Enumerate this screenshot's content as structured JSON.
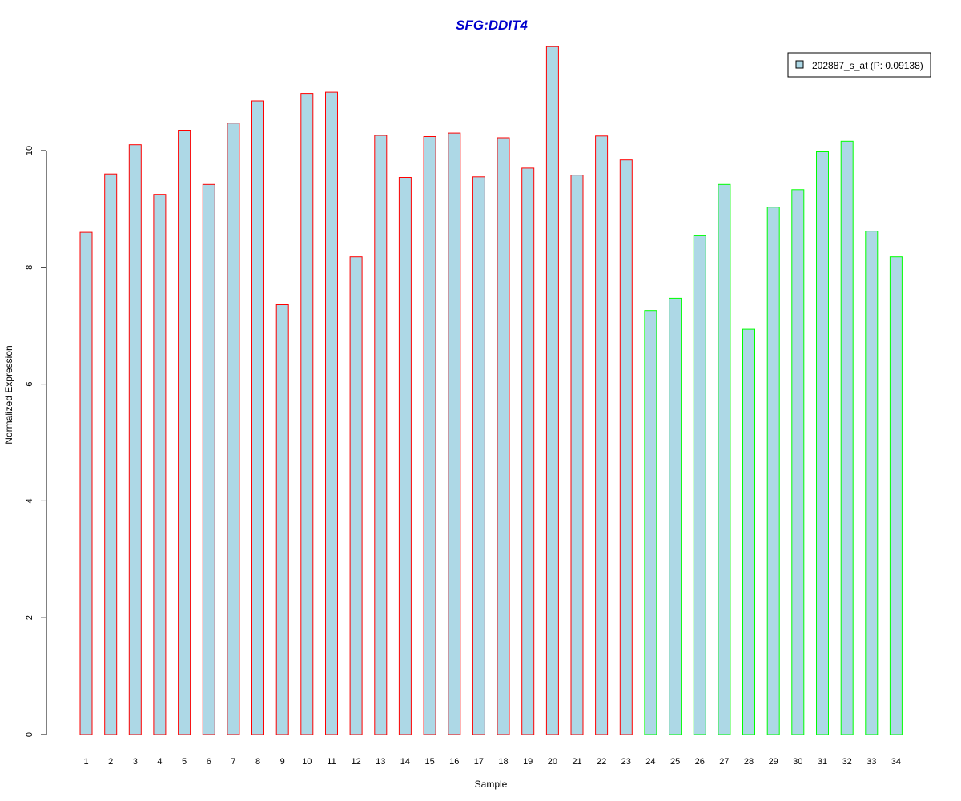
{
  "chart_data": {
    "type": "bar",
    "title": "SFG:DDIT4",
    "xlabel": "Sample",
    "ylabel": "Normalized Expression",
    "ylim": [
      0,
      11.8
    ],
    "yticks": [
      0,
      2,
      4,
      6,
      8,
      10
    ],
    "grid": false,
    "legend": {
      "position": "top-right",
      "label": "202887_s_at (P: 0.09138)"
    },
    "colors": {
      "fill": "#add8e6",
      "group1_border": "#ff0000",
      "group2_border": "#00ff00",
      "title": "#0000cc"
    },
    "categories": [
      "1",
      "2",
      "3",
      "4",
      "5",
      "6",
      "7",
      "8",
      "9",
      "10",
      "11",
      "12",
      "13",
      "14",
      "15",
      "16",
      "17",
      "18",
      "19",
      "20",
      "21",
      "22",
      "23",
      "24",
      "25",
      "26",
      "27",
      "28",
      "29",
      "30",
      "31",
      "32",
      "33",
      "34"
    ],
    "series": [
      {
        "name": "202887_s_at (P: 0.09138)",
        "values": [
          8.6,
          9.6,
          10.1,
          9.25,
          10.35,
          9.42,
          10.47,
          10.85,
          7.36,
          10.98,
          11.0,
          8.18,
          10.26,
          9.54,
          10.24,
          10.3,
          9.55,
          10.22,
          9.7,
          11.78,
          9.58,
          10.25,
          9.84,
          7.26,
          7.47,
          8.54,
          9.42,
          6.94,
          9.03,
          9.33,
          9.98,
          10.16,
          8.62,
          8.18
        ],
        "groups": [
          1,
          1,
          1,
          1,
          1,
          1,
          1,
          1,
          1,
          1,
          1,
          1,
          1,
          1,
          1,
          1,
          1,
          1,
          1,
          1,
          1,
          1,
          1,
          2,
          2,
          2,
          2,
          2,
          2,
          2,
          2,
          2,
          2,
          2
        ]
      }
    ]
  }
}
